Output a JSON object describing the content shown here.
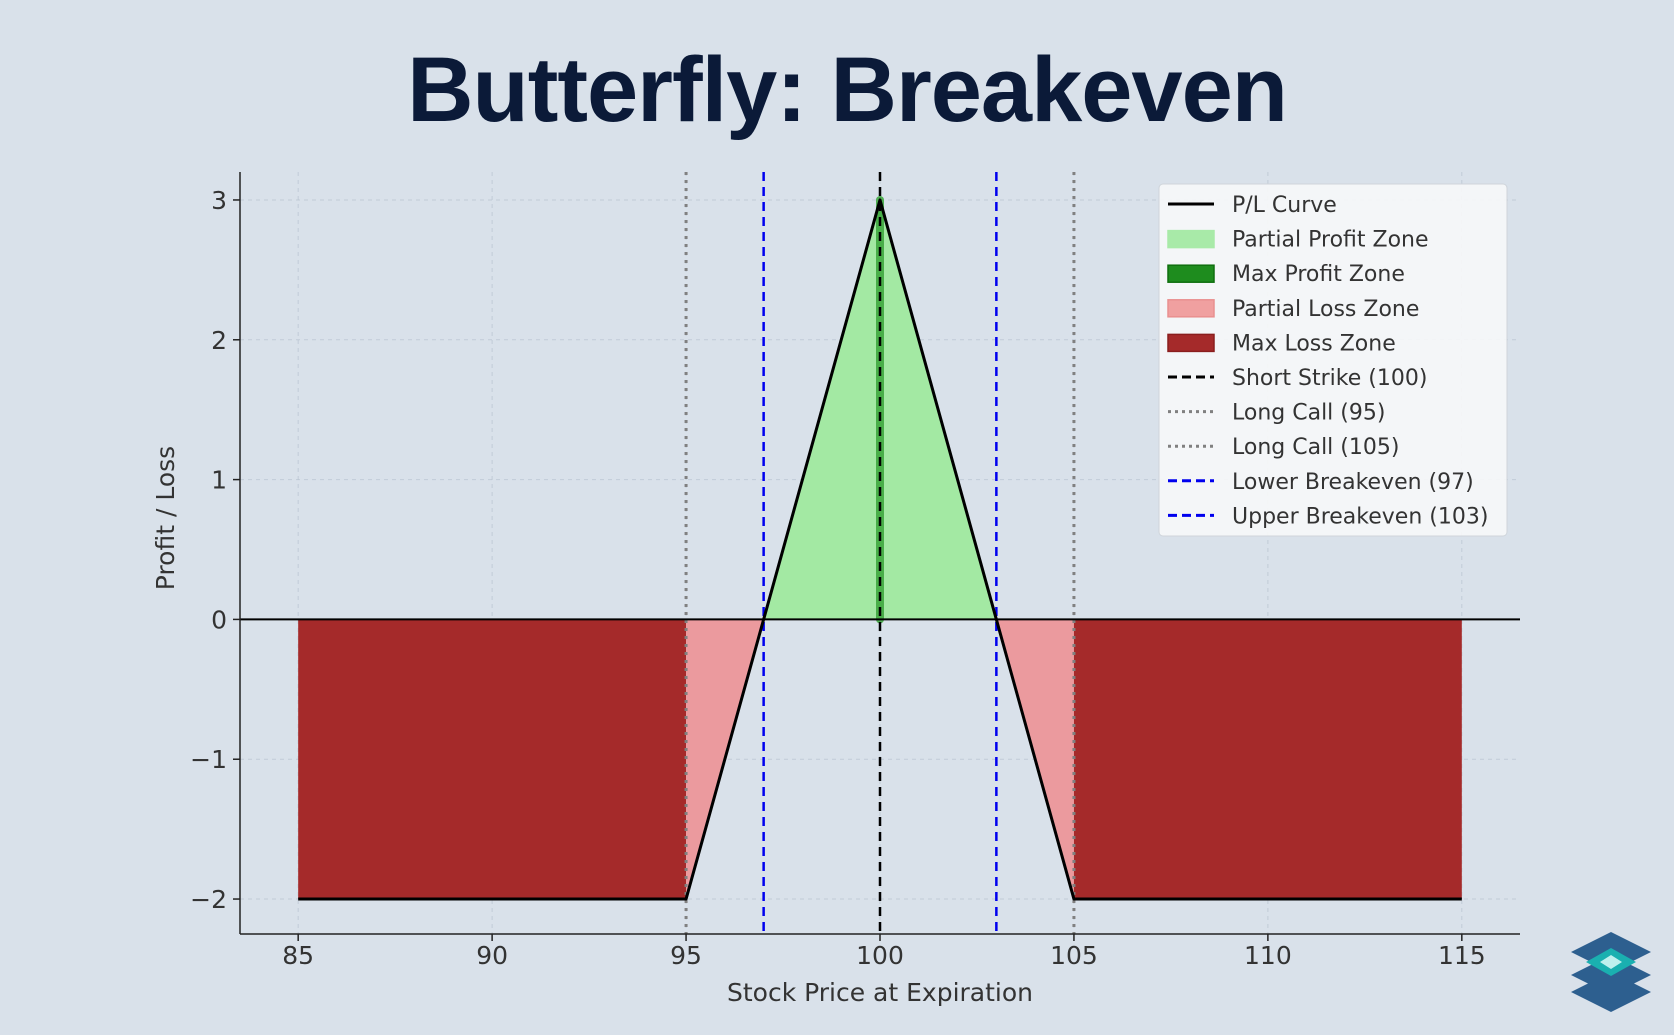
{
  "title": "Butterfly: Breakeven",
  "brand_logo": "layered-diamond-logo",
  "colors": {
    "background": "#d9e1ea",
    "title": "#0b1a38",
    "pl_curve": "#000000",
    "partial_profit": "#90ee90",
    "max_profit": "#1e8c1e",
    "partial_loss": "#f08080",
    "max_loss": "#a52a2a",
    "breakeven": "#0000ee",
    "long_call": "#808080",
    "short_strike": "#000000"
  },
  "chart_data": {
    "type": "line",
    "xlabel": "Stock Price at Expiration",
    "ylabel": "Profit / Loss",
    "xlim": [
      83.5,
      116.5
    ],
    "ylim": [
      -2.25,
      3.2
    ],
    "xticks": [
      85,
      90,
      95,
      100,
      105,
      110,
      115
    ],
    "xtick_labels": [
      "85",
      "90",
      "95",
      "100",
      "105",
      "110",
      "115"
    ],
    "yticks": [
      -2,
      -1,
      0,
      1,
      2,
      3
    ],
    "ytick_labels": [
      "−2",
      "−1",
      "0",
      "1",
      "2",
      "3"
    ],
    "grid": true,
    "legend_placement": "upper right",
    "series": [
      {
        "name": "P/L Curve",
        "x": [
          85,
          95,
          97,
          100,
          103,
          105,
          115
        ],
        "y": [
          -2,
          -2,
          0,
          3,
          0,
          -2,
          -2
        ]
      }
    ],
    "zones": [
      {
        "name": "Max Loss Zone",
        "x_from": 85,
        "x_to": 95
      },
      {
        "name": "Partial Loss Zone",
        "x_from": 95,
        "x_to": 97
      },
      {
        "name": "Partial Profit Zone",
        "x_from": 97,
        "x_to": 103
      },
      {
        "name": "Max Profit Zone",
        "x_from": 100,
        "x_to": 100
      },
      {
        "name": "Partial Loss Zone",
        "x_from": 103,
        "x_to": 105
      },
      {
        "name": "Max Loss Zone",
        "x_from": 105,
        "x_to": 115
      }
    ],
    "vertical_lines": [
      {
        "name": "Short Strike (100)",
        "x": 100,
        "style": "dashed",
        "color": "#000000"
      },
      {
        "name": "Long Call (95)",
        "x": 95,
        "style": "dotted",
        "color": "#808080"
      },
      {
        "name": "Long Call (105)",
        "x": 105,
        "style": "dotted",
        "color": "#808080"
      },
      {
        "name": "Lower Breakeven (97)",
        "x": 97,
        "style": "dashed",
        "color": "#0000ee"
      },
      {
        "name": "Upper Breakeven (103)",
        "x": 103,
        "style": "dashed",
        "color": "#0000ee"
      }
    ],
    "legend": [
      {
        "label": "P/L Curve",
        "kind": "line",
        "color": "#000000",
        "style": "solid"
      },
      {
        "label": "Partial Profit Zone",
        "kind": "patch",
        "color": "#a8eaa8",
        "edge": "#a8eaa8"
      },
      {
        "label": "Max Profit Zone",
        "kind": "patch",
        "color": "#1e8c1e",
        "edge": "#0f6f0f"
      },
      {
        "label": "Partial Loss Zone",
        "kind": "patch",
        "color": "#f0a0a0",
        "edge": "#e99090"
      },
      {
        "label": "Max Loss Zone",
        "kind": "patch",
        "color": "#a52a2a",
        "edge": "#8a1e1e"
      },
      {
        "label": "Short Strike (100)",
        "kind": "line",
        "color": "#000000",
        "style": "dashed"
      },
      {
        "label": "Long Call (95)",
        "kind": "line",
        "color": "#808080",
        "style": "dotted"
      },
      {
        "label": "Long Call (105)",
        "kind": "line",
        "color": "#808080",
        "style": "dotted"
      },
      {
        "label": "Lower Breakeven (97)",
        "kind": "line",
        "color": "#0000ee",
        "style": "dashed"
      },
      {
        "label": "Upper Breakeven (103)",
        "kind": "line",
        "color": "#0000ee",
        "style": "dashed"
      }
    ]
  }
}
